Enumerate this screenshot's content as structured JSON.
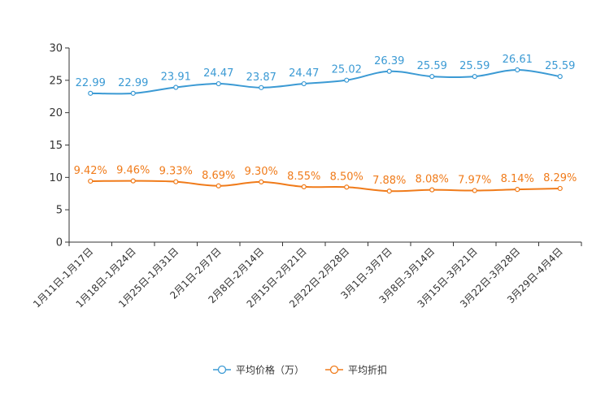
{
  "chart_data": {
    "type": "line",
    "title": "",
    "xlabel": "",
    "ylabel": "",
    "ylim": [
      0,
      30
    ],
    "yticks": [
      0,
      5,
      10,
      15,
      20,
      25,
      30
    ],
    "grid": false,
    "legend_position": "bottom-center",
    "categories": [
      "1月11日-1月17日",
      "1月18日-1月24日",
      "1月25日-1月31日",
      "2月1日-2月7日",
      "2月8日-2月14日",
      "2月15日-2月21日",
      "2月22日-2月28日",
      "3月1日-3月7日",
      "3月8日-3月14日",
      "3月15日-3月21日",
      "3月22日-3月28日",
      "3月29日-4月4日"
    ],
    "series": [
      {
        "name": "平均价格（万）",
        "color": "#3b9ad4",
        "values": [
          22.99,
          22.99,
          23.91,
          24.47,
          23.87,
          24.47,
          25.02,
          26.39,
          25.59,
          25.59,
          26.61,
          25.59
        ],
        "labels": [
          "22.99",
          "22.99",
          "23.91",
          "24.47",
          "23.87",
          "24.47",
          "25.02",
          "26.39",
          "25.59",
          "25.59",
          "26.61",
          "25.59"
        ]
      },
      {
        "name": "平均折扣",
        "color": "#f07b1a",
        "values": [
          9.42,
          9.46,
          9.33,
          8.69,
          9.3,
          8.55,
          8.5,
          7.88,
          8.08,
          7.97,
          8.14,
          8.29
        ],
        "labels": [
          "9.42%",
          "9.46%",
          "9.33%",
          "8.69%",
          "9.30%",
          "8.55%",
          "8.50%",
          "7.88%",
          "8.08%",
          "7.97%",
          "8.14%",
          "8.29%"
        ]
      }
    ]
  }
}
